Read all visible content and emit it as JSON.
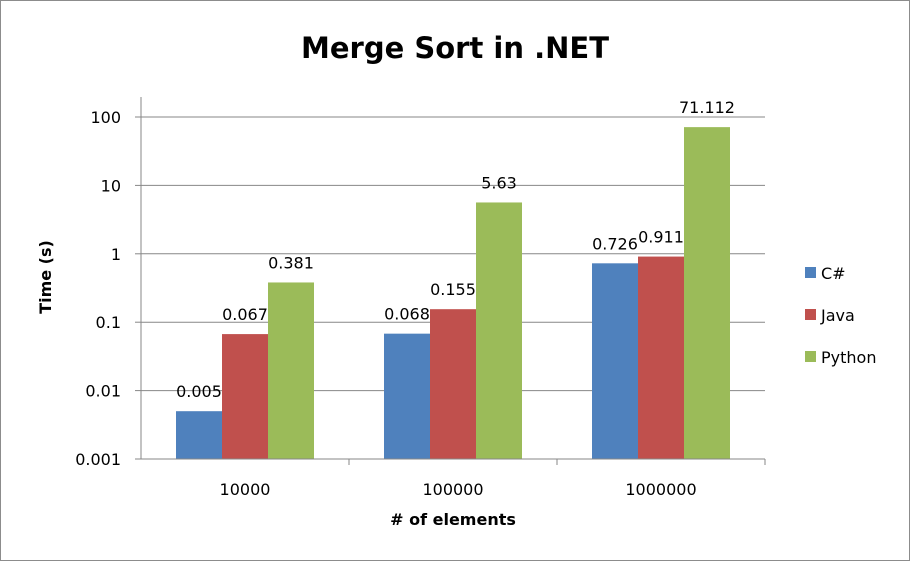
{
  "chart_data": {
    "type": "bar",
    "title": "Merge Sort in .NET",
    "xlabel": "# of elements",
    "ylabel": "Time (s)",
    "yscale": "log",
    "ylim": [
      0.001,
      100
    ],
    "yticks": [
      "0.001",
      "0.01",
      "0.1",
      "1",
      "10",
      "100"
    ],
    "categories": [
      "10000",
      "100000",
      "1000000"
    ],
    "grid": true,
    "legend_position": "right",
    "series": [
      {
        "name": "C#",
        "color": "#4f81bd",
        "values": [
          0.005,
          0.068,
          0.726
        ],
        "labels": [
          "0.005",
          "0.068",
          "0.726"
        ]
      },
      {
        "name": "Java",
        "color": "#c0504d",
        "values": [
          0.067,
          0.155,
          0.911
        ],
        "labels": [
          "0.067",
          "0.155",
          "0.911"
        ]
      },
      {
        "name": "Python",
        "color": "#9bbb59",
        "values": [
          0.381,
          5.63,
          71.112
        ],
        "labels": [
          "0.381",
          "5.63",
          "71.112"
        ]
      }
    ]
  }
}
